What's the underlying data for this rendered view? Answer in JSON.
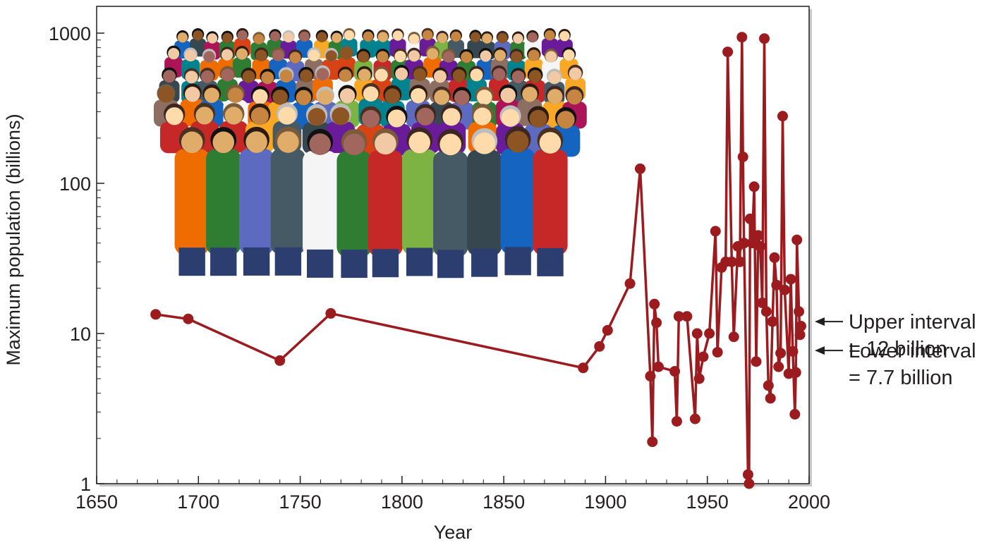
{
  "chart_data": {
    "type": "line",
    "xlabel": "Year",
    "ylabel": "Maximum population (billions)",
    "y_scale": "log",
    "xlim": [
      1650,
      2000
    ],
    "ylim": [
      1,
      1000
    ],
    "x_ticks": [
      "1650",
      "1700",
      "1750",
      "1800",
      "1850",
      "1900",
      "1950",
      "2000"
    ],
    "y_ticks": [
      "1",
      "10",
      "100",
      "1000"
    ],
    "grid": false,
    "series": [
      {
        "color": "#9b1b1f",
        "points": [
          [
            1679,
            13.4
          ],
          [
            1695,
            12.5
          ],
          [
            1740,
            6.6
          ],
          [
            1765,
            13.6
          ],
          [
            1889,
            5.9
          ],
          [
            1897,
            8.2
          ],
          [
            1901,
            10.5
          ],
          [
            1912,
            21.5
          ],
          [
            1917,
            125
          ],
          [
            1922,
            5.2
          ],
          [
            1923,
            1.9
          ],
          [
            1924,
            15.7
          ],
          [
            1925,
            11.8
          ],
          [
            1926,
            6.0
          ],
          [
            1934,
            5.6
          ],
          [
            1935,
            2.6
          ],
          [
            1936,
            13.0
          ],
          [
            1940,
            13.0
          ],
          [
            1944,
            2.7
          ],
          [
            1945,
            10.0
          ],
          [
            1946,
            5.0
          ],
          [
            1948,
            7.0
          ],
          [
            1951,
            10.0
          ],
          [
            1954,
            48.0
          ],
          [
            1955,
            7.5
          ],
          [
            1957,
            27.5
          ],
          [
            1959,
            30.0
          ],
          [
            1960,
            750
          ],
          [
            1962,
            30.0
          ],
          [
            1963,
            9.5
          ],
          [
            1965,
            38.0
          ],
          [
            1966,
            30.0
          ],
          [
            1967,
            940
          ],
          [
            1967.5,
            150
          ],
          [
            1968,
            40.0
          ],
          [
            1970,
            1.15
          ],
          [
            1970.5,
            1.0
          ],
          [
            1971,
            58.0
          ],
          [
            1972,
            40.0
          ],
          [
            1973,
            95.0
          ],
          [
            1974,
            6.5
          ],
          [
            1975,
            45.0
          ],
          [
            1976,
            38.0
          ],
          [
            1977,
            16.0
          ],
          [
            1978,
            920
          ],
          [
            1979,
            14.0
          ],
          [
            1980,
            4.5
          ],
          [
            1981,
            3.7
          ],
          [
            1982,
            12.0
          ],
          [
            1983,
            32.0
          ],
          [
            1984,
            21.0
          ],
          [
            1985,
            6.0
          ],
          [
            1986,
            7.4
          ],
          [
            1987,
            280
          ],
          [
            1988,
            19.5
          ],
          [
            1990,
            5.4
          ],
          [
            1991,
            23.0
          ],
          [
            1992,
            7.6
          ],
          [
            1993,
            2.9
          ],
          [
            1993.5,
            5.5
          ],
          [
            1994,
            42.0
          ],
          [
            1995,
            14.0
          ],
          [
            1995.5,
            9.8
          ],
          [
            1996,
            11.2
          ]
        ]
      }
    ],
    "annotations": [
      {
        "lines": [
          "Upper interval",
          "= 12 billion"
        ],
        "y": 12
      },
      {
        "lines": [
          "Lower interval",
          "= 7.7 billion"
        ],
        "y": 7.7
      }
    ]
  },
  "photo": {
    "icon": "crowd-of-people-photo"
  }
}
